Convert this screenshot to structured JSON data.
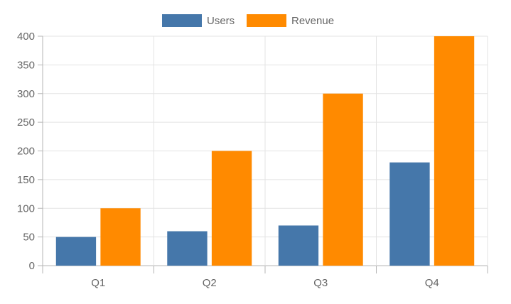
{
  "chart_data": {
    "type": "bar",
    "categories": [
      "Q1",
      "Q2",
      "Q3",
      "Q4"
    ],
    "series": [
      {
        "name": "Users",
        "values": [
          50,
          60,
          70,
          180
        ],
        "color": "#4577aa"
      },
      {
        "name": "Revenue",
        "values": [
          100,
          200,
          300,
          400
        ],
        "color": "#ff8a00"
      }
    ],
    "ylim": [
      0,
      400
    ],
    "yticks": [
      0,
      50,
      100,
      150,
      200,
      250,
      300,
      350,
      400
    ],
    "grid": true,
    "legend_position": "top-center",
    "colors": {
      "grid": "#e3e3e3",
      "axis": "#b5b5b5",
      "text": "#666666"
    }
  }
}
